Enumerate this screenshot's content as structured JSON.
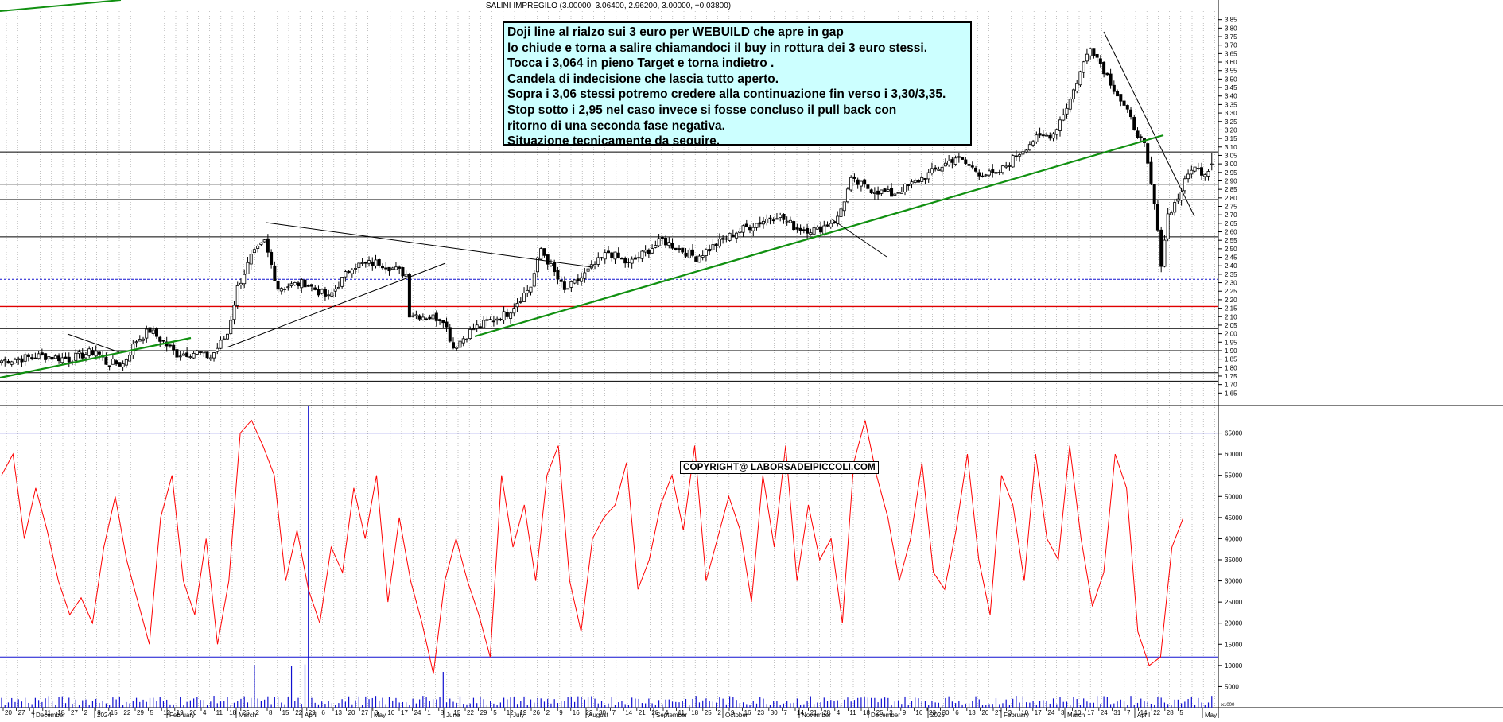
{
  "chart_data": [
    {
      "type": "candlestick",
      "title": "SALINI IMPREGILO (3.00000, 3.06400, 2.96200, 3.00000, +0.03800)",
      "instrument": "SALINI IMPREGILO",
      "last_bar": {
        "open": 3.0,
        "high": 3.064,
        "low": 2.962,
        "close": 3.0,
        "change": 0.038
      },
      "ylim": [
        1.6,
        3.9
      ],
      "y_ticks": [
        1.65,
        1.7,
        1.75,
        1.8,
        1.85,
        1.9,
        1.95,
        2.0,
        2.05,
        2.1,
        2.15,
        2.2,
        2.25,
        2.3,
        2.35,
        2.4,
        2.45,
        2.5,
        2.55,
        2.6,
        2.65,
        2.7,
        2.75,
        2.8,
        2.85,
        2.9,
        2.95,
        3.0,
        3.05,
        3.1,
        3.15,
        3.2,
        3.25,
        3.3,
        3.35,
        3.4,
        3.45,
        3.5,
        3.55,
        3.6,
        3.65,
        3.7,
        3.75,
        3.8,
        3.85
      ],
      "horizontal_levels": {
        "black": [
          1.72,
          1.77,
          1.9,
          2.03,
          2.57,
          2.79,
          2.88,
          3.07
        ],
        "red": [
          2.16
        ],
        "blue_dashed": [
          2.32
        ]
      },
      "price_path": [
        [
          0,
          1.84
        ],
        [
          12,
          1.87
        ],
        [
          20,
          1.85
        ],
        [
          28,
          1.9
        ],
        [
          31,
          1.83
        ],
        [
          36,
          1.82
        ],
        [
          40,
          1.96
        ],
        [
          44,
          2.02
        ],
        [
          52,
          1.88
        ],
        [
          58,
          1.89
        ],
        [
          62,
          1.86
        ],
        [
          67,
          2.0
        ],
        [
          70,
          2.27
        ],
        [
          74,
          2.45
        ],
        [
          78,
          2.54
        ],
        [
          82,
          2.27
        ],
        [
          90,
          2.3
        ],
        [
          97,
          2.21
        ],
        [
          104,
          2.4
        ],
        [
          112,
          2.42
        ],
        [
          120,
          2.35
        ],
        [
          121,
          2.12
        ],
        [
          126,
          2.1
        ],
        [
          131,
          2.09
        ],
        [
          134,
          1.92
        ],
        [
          140,
          2.03
        ],
        [
          150,
          2.12
        ],
        [
          157,
          2.28
        ],
        [
          160,
          2.5
        ],
        [
          167,
          2.25
        ],
        [
          172,
          2.33
        ],
        [
          180,
          2.48
        ],
        [
          186,
          2.41
        ],
        [
          196,
          2.55
        ],
        [
          206,
          2.45
        ],
        [
          218,
          2.6
        ],
        [
          230,
          2.7
        ],
        [
          236,
          2.62
        ],
        [
          242,
          2.61
        ],
        [
          248,
          2.68
        ],
        [
          252,
          2.9
        ],
        [
          258,
          2.85
        ],
        [
          264,
          2.82
        ],
        [
          270,
          2.88
        ],
        [
          276,
          2.95
        ],
        [
          283,
          3.04
        ],
        [
          290,
          2.95
        ],
        [
          295,
          2.93
        ],
        [
          300,
          3.03
        ],
        [
          306,
          3.14
        ],
        [
          312,
          3.18
        ],
        [
          317,
          3.38
        ],
        [
          323,
          3.7
        ],
        [
          328,
          3.52
        ],
        [
          334,
          3.3
        ],
        [
          339,
          3.1
        ],
        [
          342,
          2.76
        ],
        [
          344,
          2.42
        ],
        [
          346,
          2.7
        ],
        [
          349,
          2.8
        ],
        [
          353,
          2.98
        ],
        [
          357,
          2.95
        ],
        [
          359,
          3.0
        ]
      ],
      "trendlines": {
        "green": [
          "support Oct 2023 - Feb 2024",
          "support Jun 2024 - Apr 2025"
        ],
        "black": [
          "resistance Mar 2024 - Aug 2024",
          "support Feb 2024 - May 2024",
          "resistance Mar 2025 - Apr 2025"
        ]
      },
      "x_day_labels": [
        "20",
        "27",
        "4",
        "11",
        "18",
        "27",
        "2",
        "8",
        "15",
        "22",
        "29",
        "5",
        "12",
        "19",
        "26",
        "4",
        "11",
        "18",
        "25",
        "2",
        "8",
        "15",
        "22",
        "29",
        "6",
        "13",
        "20",
        "27",
        "3",
        "10",
        "17",
        "24",
        "1",
        "8",
        "15",
        "22",
        "29",
        "5",
        "12",
        "19",
        "26",
        "2",
        "9",
        "16",
        "23",
        "30",
        "7",
        "14",
        "21",
        "28",
        "4",
        "11",
        "18",
        "25",
        "2",
        "9",
        "16",
        "23",
        "30",
        "7",
        "14",
        "21",
        "28",
        "4",
        "11",
        "18",
        "25",
        "2",
        "9",
        "16",
        "23",
        "30",
        "6",
        "13",
        "20",
        "27",
        "3",
        "10",
        "17",
        "24",
        "3",
        "10",
        "17",
        "24",
        "31",
        "7",
        "14",
        "22",
        "28",
        "5"
      ],
      "x_month_labels": [
        "December",
        "2024",
        "February",
        "March",
        "April",
        "May",
        "June",
        "July",
        "August",
        "September",
        "October",
        "November",
        "December",
        "2025",
        "February",
        "March",
        "April",
        "May"
      ]
    },
    {
      "type": "line",
      "name": "volume oscillator",
      "ylim": [
        0,
        70000
      ],
      "y_ticks": [
        5000,
        10000,
        15000,
        20000,
        25000,
        30000,
        35000,
        40000,
        45000,
        50000,
        55000,
        60000,
        65000
      ],
      "y_unit_label": "x1000",
      "bands": [
        12000,
        65000
      ],
      "series": [
        {
          "name": "oscillator",
          "color": "#ff0000",
          "values": [
            55000,
            60000,
            40000,
            52000,
            42000,
            30000,
            22000,
            26000,
            20000,
            38000,
            50000,
            35000,
            25000,
            15000,
            45000,
            55000,
            30000,
            22000,
            40000,
            15000,
            30000,
            65000,
            68000,
            62000,
            55000,
            30000,
            42000,
            28000,
            20000,
            38000,
            32000,
            52000,
            40000,
            55000,
            25000,
            45000,
            30000,
            20000,
            8000,
            30000,
            40000,
            30000,
            22000,
            12000,
            55000,
            38000,
            48000,
            30000,
            55000,
            62000,
            30000,
            18000,
            40000,
            45000,
            48000,
            58000,
            28000,
            35000,
            48000,
            55000,
            42000,
            62000,
            30000,
            40000,
            50000,
            42000,
            25000,
            55000,
            38000,
            62000,
            30000,
            48000,
            35000,
            40000,
            20000,
            58000,
            68000,
            55000,
            45000,
            30000,
            40000,
            58000,
            32000,
            28000,
            42000,
            60000,
            35000,
            22000,
            55000,
            48000,
            30000,
            60000,
            40000,
            35000,
            62000,
            40000,
            24000,
            32000,
            60000,
            52000,
            18000,
            10000,
            12000,
            38000,
            45000
          ]
        }
      ],
      "volume_histogram": "blue bars along the bottom of the lower panel"
    }
  ],
  "annotation": {
    "lines": [
      "Doji line al rialzo sui 3 euro per WEBUILD che apre in gap",
      "lo chiude e torna a salire chiamandoci il buy in rottura dei 3 euro stessi.",
      "Tocca i 3,064 in pieno Target e torna indietro .",
      "Candela di indecisione che lascia tutto aperto.",
      "Sopra i 3,06 stessi potremo credere alla continuazione fin verso i 3,30/3,35.",
      "Stop sotto i 2,95 nel caso invece si fosse concluso il pull back con",
      "ritorno di una seconda fase negativa.",
      "Situazione tecnicamente da seguire."
    ]
  },
  "copyright": "COPYRIGHT@ LABORSADEIPICCOLI.COM",
  "colors": {
    "candle": "#000000",
    "support": "#109010",
    "red_level": "#e00000",
    "blue": "#1010d0",
    "grid": "#9a9a9a",
    "note_bg": "#ccffff"
  }
}
